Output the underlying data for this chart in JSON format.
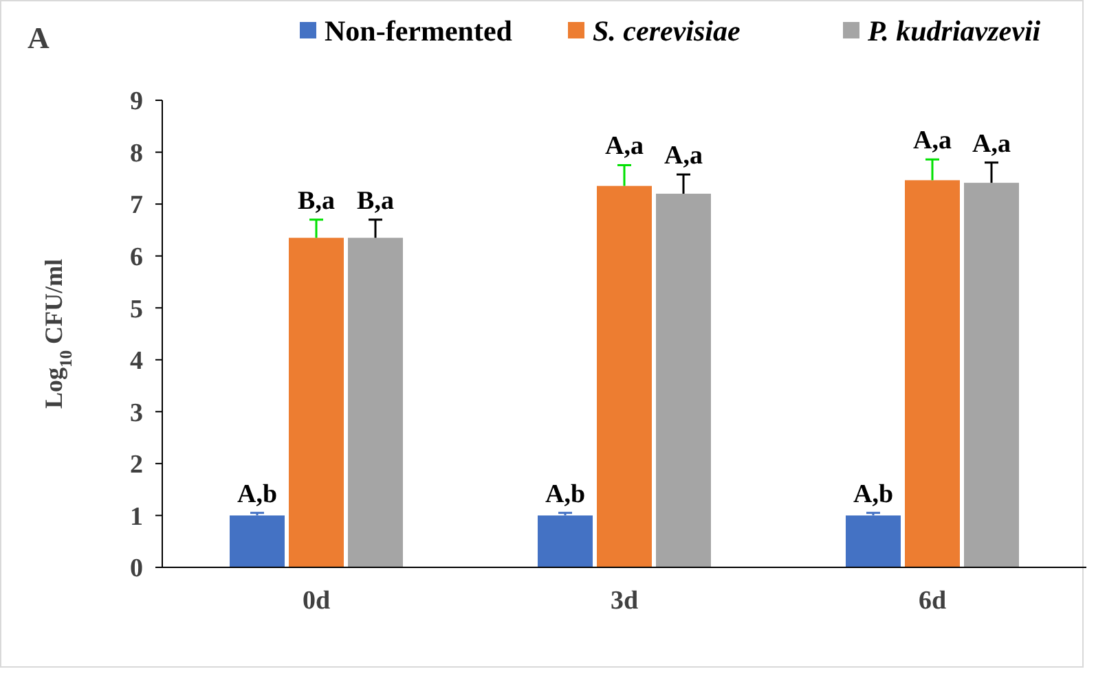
{
  "chart_data": {
    "type": "bar",
    "ylabel": "Log$_{10}$ CFU/ml",
    "categories": [
      "0d",
      "3d",
      "6d"
    ],
    "series": [
      {
        "name": "Non-fermented",
        "color": "#4472c4",
        "values": [
          1.0,
          1.0,
          1.0
        ],
        "errors": [
          [
            1.0,
            1.05
          ],
          [
            1.0,
            1.05
          ],
          [
            1.0,
            1.05
          ]
        ],
        "value_labels": [
          "A,b",
          "A,b",
          "A,b"
        ]
      },
      {
        "name": "S. cerevisiae",
        "color": "#ed7d31",
        "values": [
          6.35,
          7.35,
          7.46
        ],
        "errors": [
          [
            6.35,
            6.7
          ],
          [
            7.35,
            7.75
          ],
          [
            7.46,
            7.86
          ]
        ],
        "value_labels": [
          "B,a",
          "A,a",
          "A,a"
        ]
      },
      {
        "name": "P. kudriavzevii",
        "color": "#a5a5a5",
        "values": [
          6.35,
          7.2,
          7.41
        ],
        "errors": [
          [
            6.35,
            6.7
          ],
          [
            7.2,
            7.57
          ],
          [
            7.41,
            7.8
          ]
        ],
        "value_labels": [
          "B,a",
          "A,a",
          "A,a"
        ]
      }
    ],
    "ylim": [
      0,
      9
    ],
    "yticks": [
      0,
      1,
      2,
      3,
      4,
      5,
      6,
      7,
      8,
      9
    ],
    "grid": false,
    "legend": "top right",
    "annotations": [
      "A"
    ]
  }
}
